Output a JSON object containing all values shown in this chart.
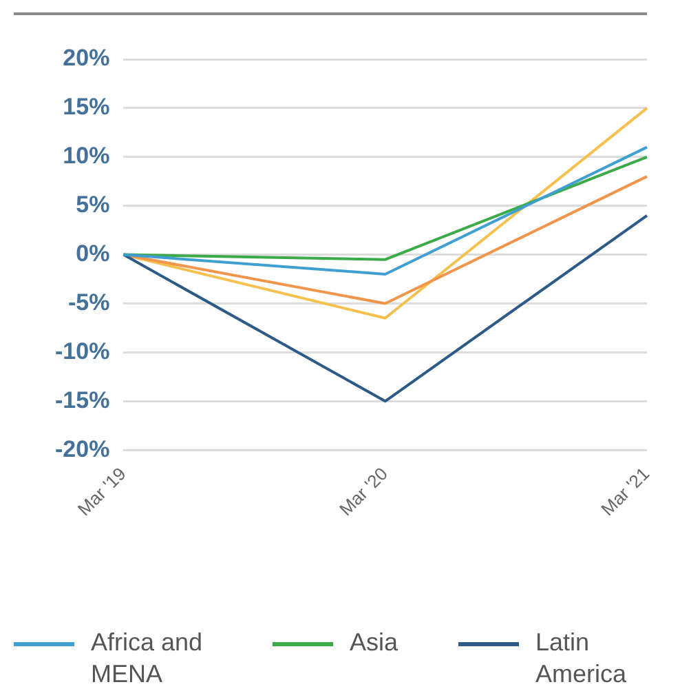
{
  "chart_data": {
    "type": "line",
    "categories": [
      "Mar '19",
      "Mar '20",
      "Mar '21"
    ],
    "series": [
      {
        "name": "Africa and MENA",
        "color": "#3f9fd0",
        "values": [
          0,
          -2,
          11
        ]
      },
      {
        "name": "Asia",
        "color": "#3daa4a",
        "values": [
          0,
          -0.5,
          10
        ]
      },
      {
        "name": "Latin America",
        "color": "#2e5a87",
        "values": [
          0,
          -15,
          4
        ]
      },
      {
        "color": "#f0954a",
        "values": [
          0,
          -5,
          8
        ]
      },
      {
        "color": "#f6c04e",
        "values": [
          0,
          -6.5,
          15
        ]
      }
    ],
    "ylim": [
      -20,
      20
    ],
    "yticks": [
      {
        "value": -20,
        "label": "-20%"
      },
      {
        "value": -15,
        "label": "-15%"
      },
      {
        "value": -10,
        "label": "-10%"
      },
      {
        "value": -5,
        "label": "-5%"
      },
      {
        "value": 0,
        "label": "0%"
      },
      {
        "value": 5,
        "label": "5%"
      },
      {
        "value": 10,
        "label": "10%"
      },
      {
        "value": 15,
        "label": "15%"
      },
      {
        "value": 20,
        "label": "20%"
      }
    ],
    "grid": "y",
    "legend": "bottom"
  }
}
